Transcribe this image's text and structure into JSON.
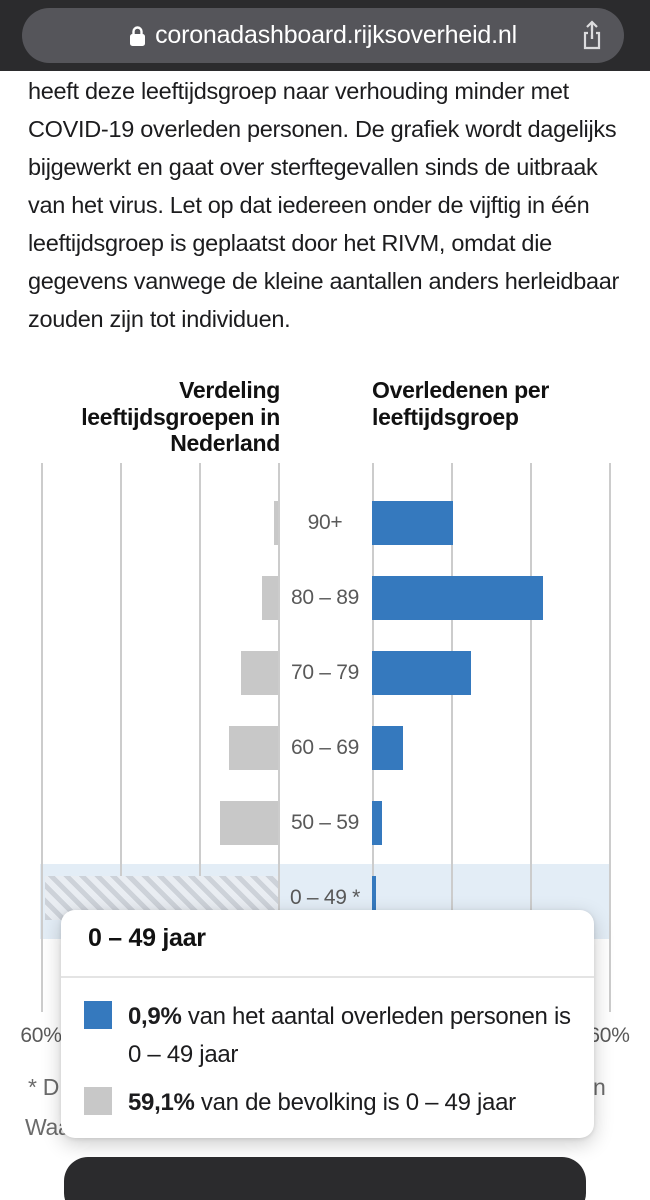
{
  "browser": {
    "url": "coronadashboard.rijksoverheid.nl"
  },
  "article": {
    "paragraph": "heeft deze leeftijdsgroep naar verhouding minder met COVID-19 overleden personen. De grafiek wordt dagelijks bijgewerkt en gaat over sterftegevallen sinds de uitbraak van het virus. Let op dat iedereen onder de vijftig in één leeftijdsgroep is geplaatst door het RIVM, omdat die gegevens vanwege de kleine aantallen anders herleidbaar zouden zijn tot individuen.",
    "lines": [
      "heeft deze leeftijdsgroep naar verhouding minder met",
      "COVID-19 overleden personen. De grafiek wordt dagelijks",
      "bijgewerkt en gaat over sterftegevallen sinds de uitbraak",
      "van het virus. Let op dat iedereen onder de vijftig in één",
      "leeftijdsgroep is geplaatst door het RIVM, omdat die",
      "gegevens vanwege de kleine aantallen anders herleidbaar",
      "zouden zijn tot individuen."
    ]
  },
  "chart_data": {
    "type": "bar",
    "layout": "horizontal-butterfly",
    "left_title": "Verdeling leeftijdsgroepen in Nederland",
    "left_title_lines": [
      "Verdeling",
      "leeftijdsgroepen in",
      "Nederland"
    ],
    "right_title": "Overledenen per leeftijdsgroep",
    "right_title_lines": [
      "Overledenen per",
      "leeftijdsgroep"
    ],
    "categories": [
      "90+",
      "80 – 89",
      "70 – 79",
      "60 – 69",
      "50 – 59",
      "0 – 49 *"
    ],
    "series": [
      {
        "name": "Verdeling leeftijdsgroepen in Nederland (% van de bevolking)",
        "side": "left",
        "color": "#c8c8c8",
        "values": [
          1.1,
          4.0,
          9.3,
          12.3,
          14.8,
          59.1
        ]
      },
      {
        "name": "Overledenen per leeftijdsgroep (% van overleden personen)",
        "side": "right",
        "color": "#3579be",
        "values": [
          20.5,
          43.3,
          25.1,
          7.8,
          2.5,
          0.9
        ]
      }
    ],
    "highlighted_category_index": 5,
    "highlight_row_color": "#e3edf6",
    "xmax_percent": 60,
    "tick_step_percent": 20,
    "grid_on": true,
    "axis_label_left": "60%",
    "axis_label_right": "60%"
  },
  "footnote": {
    "fragment_star": "* D",
    "fragment_right": "n",
    "fragment_waa": "Waa"
  },
  "tooltip": {
    "title": "0 – 49 jaar",
    "items": [
      {
        "swatch_color": "#3579be",
        "value": "0,9%",
        "text": " van het aantal overleden personen is 0 – 49 jaar"
      },
      {
        "swatch_color": "#c8c8c8",
        "value": "59,1%",
        "text": " van de bevolking is 0 – 49 jaar"
      }
    ]
  },
  "colors": {
    "accent_blue": "#3579be",
    "population_gray": "#c8c8c8",
    "highlight_row": "#e3edf6",
    "topbar_bg": "#2b2b2d",
    "url_pill": "#55555a",
    "gridline": "#cccccc"
  }
}
